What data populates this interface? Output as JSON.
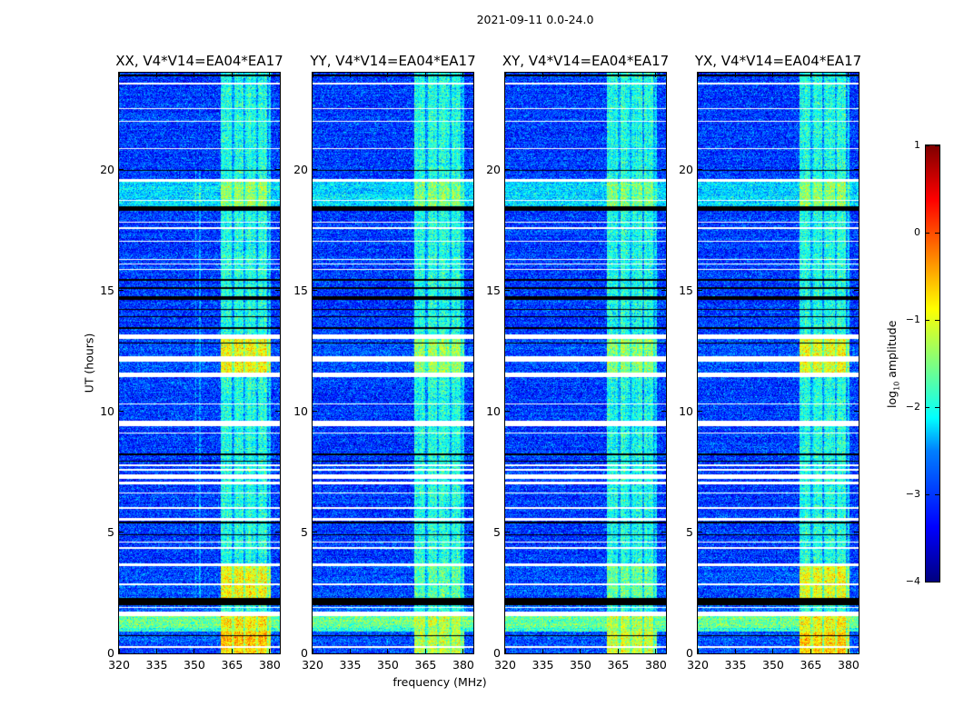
{
  "chart_data": {
    "type": "heatmap",
    "title": "2021-09-11 0.0-24.0",
    "xlabel": "frequency (MHz)",
    "ylabel": "UT (hours)",
    "xlim": [
      320,
      384
    ],
    "ylim": [
      0,
      24
    ],
    "xticks": [
      "320",
      "335",
      "350",
      "365",
      "380"
    ],
    "xtick_values": [
      320,
      335,
      350,
      365,
      380
    ],
    "yticks": [
      "0",
      "5",
      "10",
      "15",
      "20"
    ],
    "ytick_values": [
      0,
      5,
      10,
      15,
      20
    ],
    "colorbar": {
      "label_main": "log",
      "label_sub": "10",
      "label_rest": " amplitude",
      "vmin": -4,
      "vmax": 1,
      "ticks": [
        "1",
        "0",
        "−1",
        "−2",
        "−3",
        "−4"
      ],
      "tick_values": [
        1,
        0,
        -1,
        -2,
        -3,
        -4
      ],
      "colormap": "jet"
    },
    "panels": [
      {
        "title": "XX, V4*V14=EA04*EA17"
      },
      {
        "title": "YY, V4*V14=EA04*EA17"
      },
      {
        "title": "XY, V4*V14=EA04*EA17"
      },
      {
        "title": "YX, V4*V14=EA04*EA17"
      }
    ],
    "band_mhz": [
      360.5,
      380.5
    ],
    "band_gaps_mhz": [
      [
        365.0,
        365.9
      ],
      [
        369.7,
        370.2
      ],
      [
        374.5,
        375.4
      ],
      [
        378.9,
        379.6
      ]
    ],
    "time_segments": [
      {
        "from": 0.0,
        "to": 0.9,
        "background": -3.0,
        "band": [
          -0.6,
          -1.2,
          -1.1,
          -0.7
        ]
      },
      {
        "from": 0.9,
        "to": 1.05,
        "background": -1.9,
        "band": [
          -1.0,
          -1.3,
          -1.3,
          -1.0
        ]
      },
      {
        "from": 1.05,
        "to": 1.7,
        "background": -1.6,
        "band": [
          -0.8,
          -1.2,
          -1.2,
          -0.9
        ]
      },
      {
        "from": 1.7,
        "to": 2.3,
        "background": -2.9,
        "band": [
          -1.9,
          -2.0,
          -2.0,
          -1.9
        ]
      },
      {
        "from": 2.3,
        "to": 3.65,
        "background": -3.0,
        "band": [
          -0.9,
          -1.7,
          -1.6,
          -1.0
        ]
      },
      {
        "from": 3.65,
        "to": 11.6,
        "background": -3.1,
        "band": [
          -2.0,
          -2.0,
          -2.0,
          -2.0
        ]
      },
      {
        "from": 11.6,
        "to": 13.1,
        "background": -3.0,
        "band": [
          -0.9,
          -1.4,
          -1.4,
          -1.0
        ]
      },
      {
        "from": 13.1,
        "to": 18.3,
        "background": -3.1,
        "band": [
          -2.0,
          -2.0,
          -2.0,
          -2.0
        ]
      },
      {
        "from": 18.3,
        "to": 19.55,
        "background": -2.3,
        "band": [
          -1.4,
          -1.5,
          -1.5,
          -1.4
        ]
      },
      {
        "from": 19.55,
        "to": 24.0,
        "background": -3.1,
        "band": [
          -2.0,
          -2.0,
          -2.0,
          -2.0
        ]
      }
    ],
    "flagged_hours": [
      [
        0.22,
        0.3
      ],
      [
        1.55,
        1.72
      ],
      [
        1.88,
        1.93
      ],
      [
        2.83,
        2.88
      ],
      [
        3.6,
        3.7
      ],
      [
        4.33,
        4.38
      ],
      [
        4.58,
        4.63
      ],
      [
        5.5,
        5.6
      ],
      [
        5.98,
        6.03
      ],
      [
        6.6,
        6.65
      ],
      [
        7.0,
        7.1
      ],
      [
        7.2,
        7.4
      ],
      [
        7.55,
        7.62
      ],
      [
        7.72,
        7.8
      ],
      [
        9.08,
        9.13
      ],
      [
        9.4,
        9.62
      ],
      [
        10.28,
        10.33
      ],
      [
        11.4,
        11.6
      ],
      [
        12.05,
        12.3
      ],
      [
        12.98,
        13.2
      ],
      [
        15.85,
        15.9
      ],
      [
        16.08,
        16.13
      ],
      [
        16.26,
        16.31
      ],
      [
        17.01,
        17.06
      ],
      [
        17.55,
        17.6
      ],
      [
        17.8,
        17.85
      ],
      [
        18.7,
        18.75
      ],
      [
        19.5,
        19.62
      ],
      [
        20.84,
        20.89
      ],
      [
        21.97,
        22.02
      ],
      [
        22.49,
        22.54
      ],
      [
        23.53,
        23.6
      ]
    ],
    "black_lines_hours": [
      [
        0.7,
        0.76
      ],
      [
        2.0,
        2.3
      ],
      [
        4.88,
        4.93
      ],
      [
        5.37,
        5.45
      ],
      [
        7.92,
        7.97
      ],
      [
        8.2,
        8.28
      ],
      [
        12.8,
        12.85
      ],
      [
        13.4,
        13.5
      ],
      [
        13.9,
        13.95
      ],
      [
        14.2,
        14.25
      ],
      [
        14.6,
        14.75
      ],
      [
        15.05,
        15.12
      ],
      [
        15.4,
        15.47
      ],
      [
        18.3,
        18.47
      ],
      [
        19.95,
        20.0
      ],
      [
        23.85,
        23.92
      ]
    ]
  }
}
